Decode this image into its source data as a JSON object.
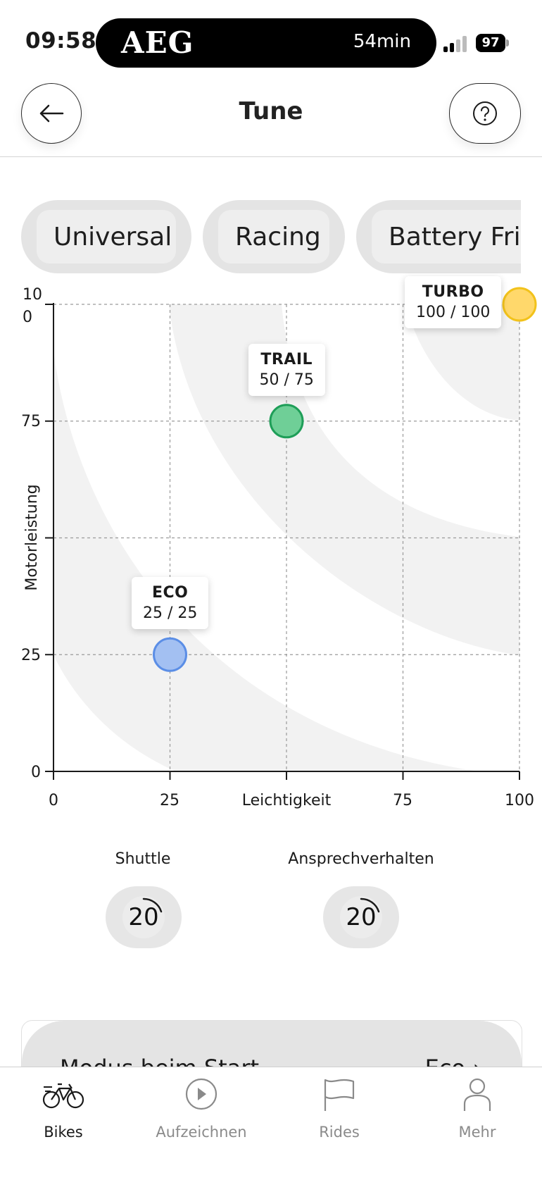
{
  "status_bar": {
    "time": "09:58",
    "brand": "AEG",
    "timer": "54min",
    "battery": "97"
  },
  "header": {
    "title": "Tune",
    "back_icon": "arrow-left-icon",
    "help_icon": "question-circle-icon"
  },
  "presets": [
    {
      "label": "Universal",
      "selected": true
    },
    {
      "label": "Racing",
      "selected": false
    },
    {
      "label": "Battery Frie",
      "selected": false
    }
  ],
  "chart": {
    "y_axis_title": "Motorleistung",
    "x_axis_title": "Leichtigkeit",
    "y_tick_top_line1": "10",
    "y_tick_top_line2": "0",
    "y_ticks": [
      "75",
      "25",
      "0"
    ],
    "x_ticks": [
      "0",
      "25",
      "75",
      "100"
    ]
  },
  "chart_data": {
    "type": "scatter",
    "xlabel": "Leichtigkeit",
    "ylabel": "Motorleistung",
    "xlim": [
      0,
      100
    ],
    "ylim": [
      0,
      100
    ],
    "grid": true,
    "points": [
      {
        "name": "ECO",
        "label": "25 / 25",
        "x": 25,
        "y": 25,
        "color": "#a3c0f2",
        "stroke": "#5b8ee6"
      },
      {
        "name": "TRAIL",
        "label": "50 / 75",
        "x": 50,
        "y": 75,
        "color": "#6fcf97",
        "stroke": "#1e9e58"
      },
      {
        "name": "TURBO",
        "label": "100 / 100",
        "x": 100,
        "y": 100,
        "color": "#ffd86b",
        "stroke": "#f2c21b"
      }
    ]
  },
  "settings": {
    "shuttle_label": "Shuttle",
    "shuttle_value": "20",
    "response_label": "Ansprechverhalten",
    "response_value": "20",
    "start_mode_label": "Modus beim Start",
    "start_mode_value": "Eco"
  },
  "nav": [
    {
      "label": "Bikes",
      "icon": "bike-icon",
      "active": true
    },
    {
      "label": "Aufzeichnen",
      "icon": "play-circle-icon",
      "active": false
    },
    {
      "label": "Rides",
      "icon": "flag-icon",
      "active": false
    },
    {
      "label": "Mehr",
      "icon": "person-icon",
      "active": false
    }
  ]
}
